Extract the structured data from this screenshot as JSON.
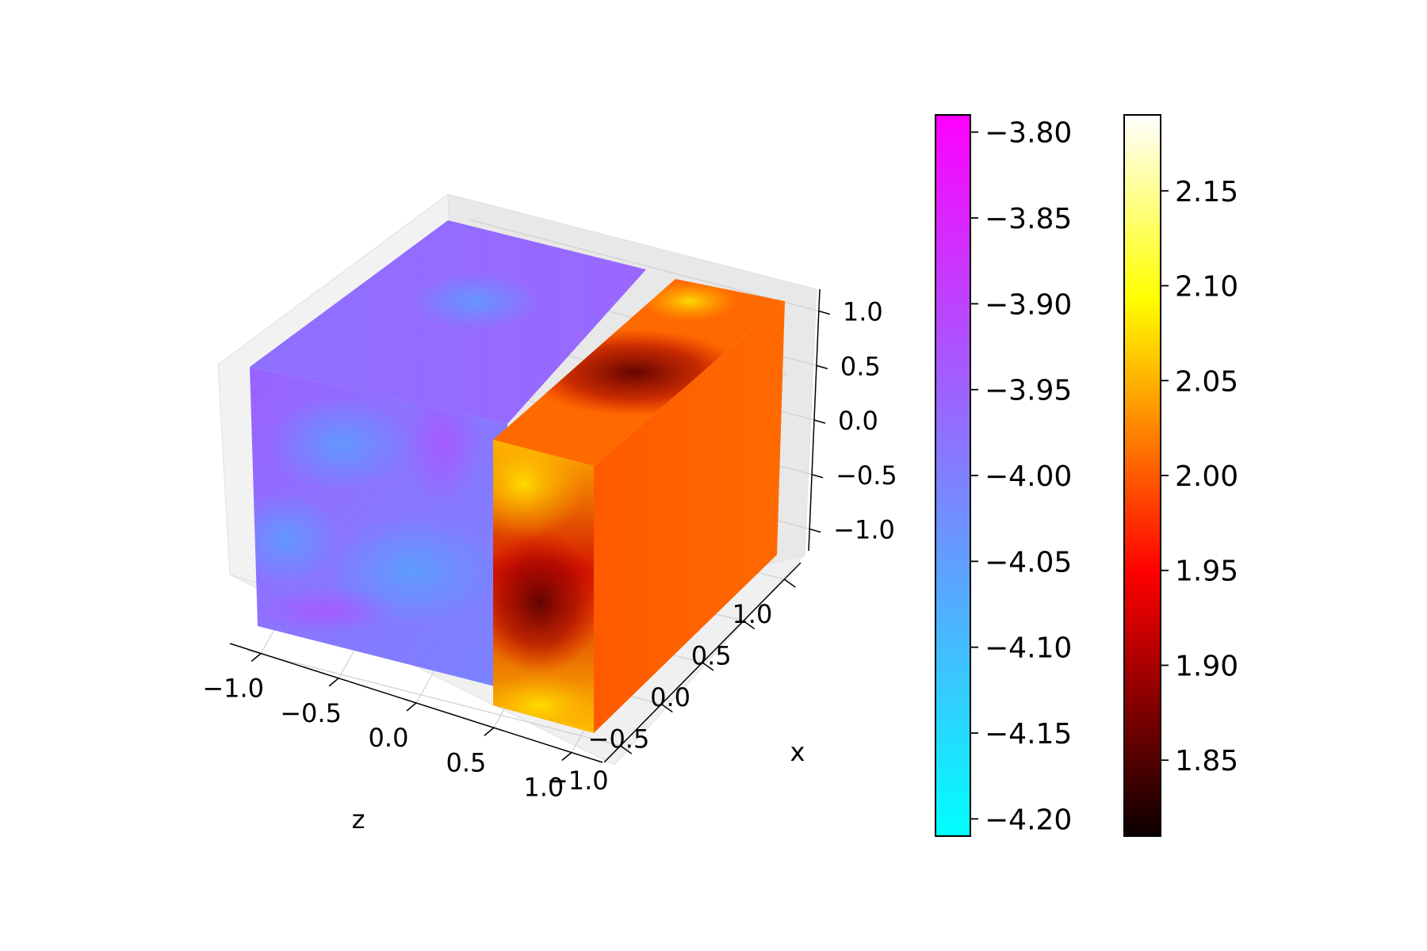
{
  "chart_data": {
    "type": "scatter",
    "projection": "3d",
    "xlabel": "z",
    "ylabel": "x",
    "zlabel": "",
    "title": "",
    "grid": true,
    "axes": {
      "z_axis": {
        "range": [
          -1.2,
          1.2
        ],
        "ticks": [
          -1.0,
          -0.5,
          0.0,
          0.5,
          1.0
        ],
        "tick_labels": [
          "−1.0",
          "−0.5",
          "0.0",
          "0.5",
          "1.0"
        ]
      },
      "x_axis": {
        "range": [
          -1.2,
          1.2
        ],
        "ticks": [
          -1.0,
          -0.5,
          0.0,
          0.5,
          1.0
        ],
        "tick_labels": [
          "−1.0",
          "−0.5",
          "0.0",
          "0.5",
          "1.0"
        ]
      },
      "vertical_axis": {
        "range": [
          -1.2,
          1.2
        ],
        "ticks": [
          -1.0,
          -0.5,
          0.0,
          0.5,
          1.0
        ],
        "tick_labels": [
          "−1.0",
          "−0.5",
          "0.0",
          "0.5",
          "1.0"
        ]
      }
    },
    "series": [
      {
        "colormap": "cool",
        "z_range": [
          -1.0,
          0.0
        ],
        "x_range": [
          -1.0,
          1.0
        ],
        "vertical_range": [
          -1.0,
          1.0
        ],
        "value_range": [
          -4.21,
          -3.79
        ],
        "approx_mean": -3.98
      },
      {
        "colormap": "hot",
        "z_range": [
          0.0,
          1.0
        ],
        "x_range": [
          -1.0,
          1.0
        ],
        "vertical_range": [
          -1.0,
          1.0
        ],
        "value_range": [
          1.81,
          2.19
        ],
        "approx_mean": 2.0
      }
    ],
    "colorbars": [
      {
        "colormap": "cool",
        "colors": [
          "#00ffff",
          "#ff00ff"
        ],
        "range": [
          -4.21,
          -3.79
        ],
        "ticks": [
          -4.2,
          -4.15,
          -4.1,
          -4.05,
          -4.0,
          -3.95,
          -3.9,
          -3.85,
          -3.8
        ],
        "tick_labels": [
          "−4.20",
          "−4.15",
          "−4.10",
          "−4.05",
          "−4.00",
          "−3.95",
          "−3.90",
          "−3.85",
          "−3.80"
        ]
      },
      {
        "colormap": "hot",
        "colors": [
          "#0b0000",
          "#ff0000",
          "#ffff00",
          "#ffffff"
        ],
        "range": [
          1.81,
          2.19
        ],
        "ticks": [
          1.85,
          1.9,
          1.95,
          2.0,
          2.05,
          2.1,
          2.15
        ],
        "tick_labels": [
          "1.85",
          "1.90",
          "1.95",
          "2.00",
          "2.05",
          "2.10",
          "2.15"
        ]
      }
    ]
  }
}
